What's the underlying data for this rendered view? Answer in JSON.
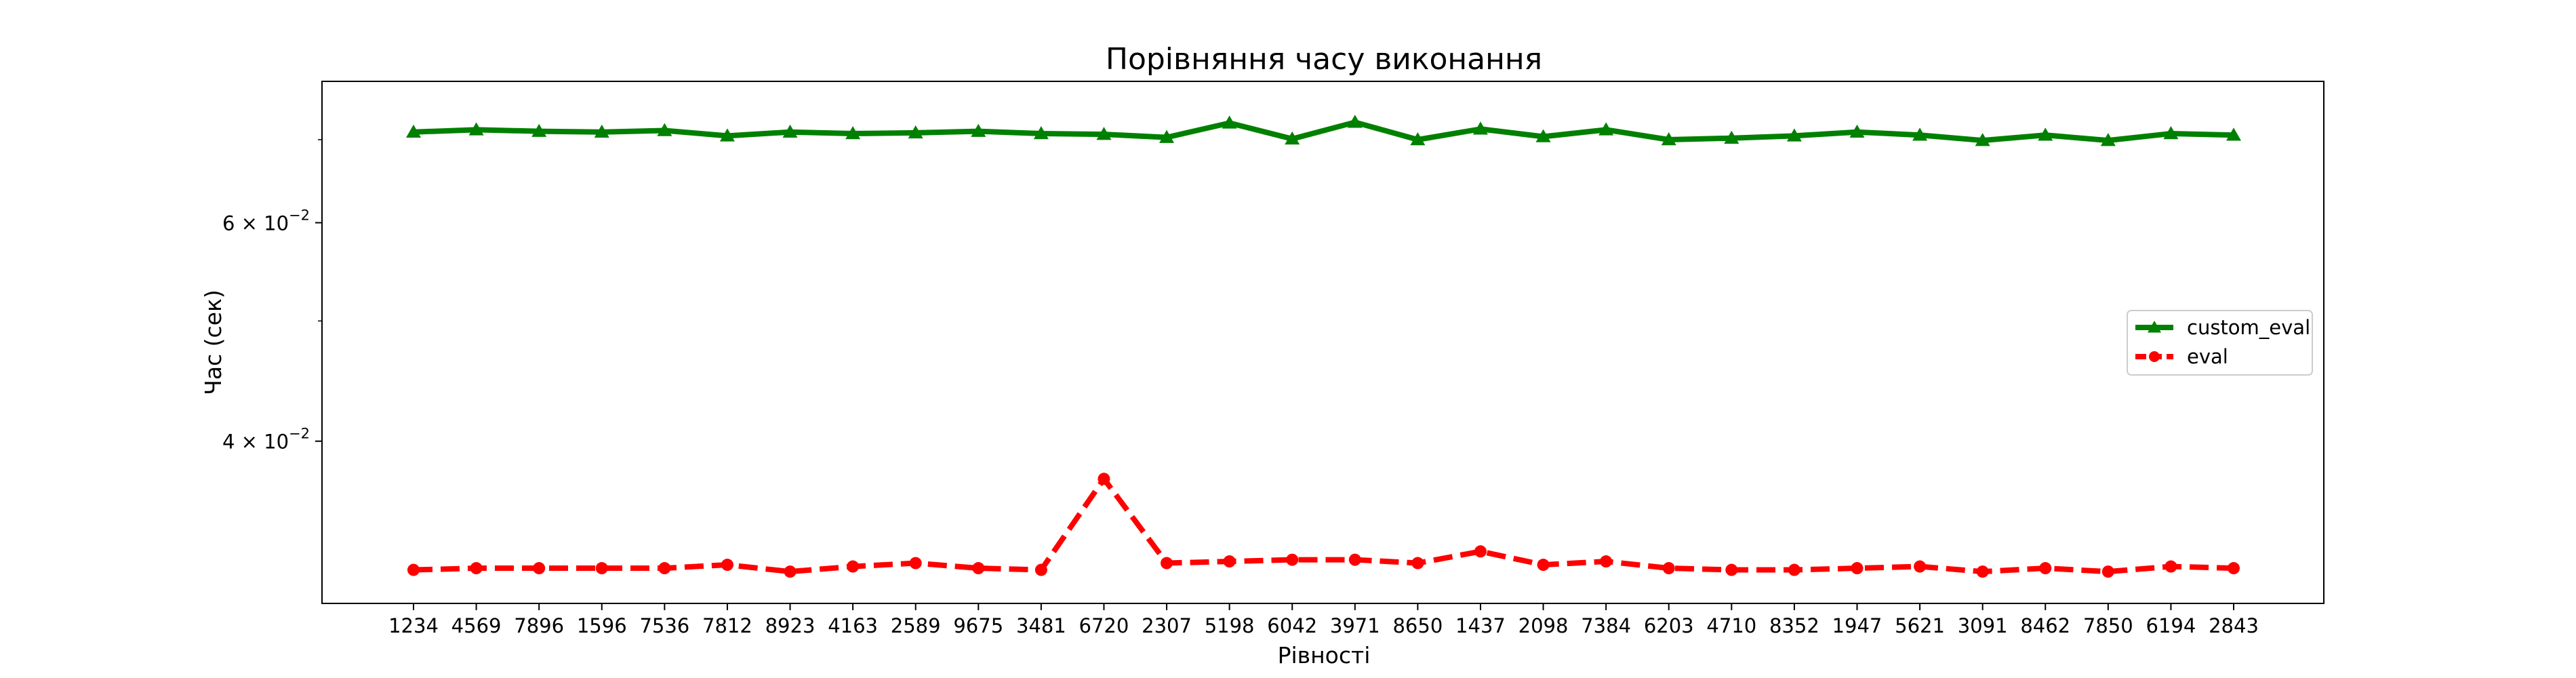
{
  "chart_data": {
    "type": "line",
    "title": "Порівняння часу виконання",
    "xlabel": "Рівності",
    "ylabel": "Час (сек)",
    "y_scale": "log",
    "ylim": [
      0.0296,
      0.078
    ],
    "grid": false,
    "legend_position": "center-right",
    "y_ticks": [
      {
        "value": 0.04,
        "mantissa": "4",
        "base": "10",
        "exponent": "−2"
      },
      {
        "value": 0.06,
        "mantissa": "6",
        "base": "10",
        "exponent": "−2"
      }
    ],
    "y_minor_ticks": [
      0.05,
      0.07
    ],
    "categories": [
      "1234",
      "4569",
      "7896",
      "1596",
      "7536",
      "7812",
      "8923",
      "4163",
      "2589",
      "9675",
      "3481",
      "6720",
      "2307",
      "5198",
      "6042",
      "3971",
      "8650",
      "1437",
      "2098",
      "7384",
      "6203",
      "4710",
      "8352",
      "1947",
      "5621",
      "3091",
      "8462",
      "7850",
      "6194",
      "2843"
    ],
    "series": [
      {
        "name": "custom_eval",
        "color": "#008000",
        "line_style": "solid",
        "marker": "triangle",
        "values": [
          0.071,
          0.0713,
          0.0711,
          0.071,
          0.0712,
          0.0705,
          0.071,
          0.0708,
          0.0709,
          0.0711,
          0.0708,
          0.0707,
          0.0703,
          0.0722,
          0.0701,
          0.0723,
          0.07,
          0.0714,
          0.0704,
          0.0713,
          0.07,
          0.0702,
          0.0705,
          0.071,
          0.0706,
          0.0699,
          0.0706,
          0.0699,
          0.0708,
          0.0706
        ]
      },
      {
        "name": "eval",
        "color": "#ff0000",
        "line_style": "dashed",
        "marker": "circle",
        "values": [
          0.0315,
          0.0316,
          0.0316,
          0.0316,
          0.0316,
          0.0318,
          0.0314,
          0.0317,
          0.0319,
          0.0316,
          0.0315,
          0.0373,
          0.0319,
          0.032,
          0.0321,
          0.0321,
          0.0319,
          0.0326,
          0.0318,
          0.032,
          0.0316,
          0.0315,
          0.0315,
          0.0316,
          0.0317,
          0.0314,
          0.0316,
          0.0314,
          0.0317,
          0.0316
        ]
      }
    ]
  }
}
